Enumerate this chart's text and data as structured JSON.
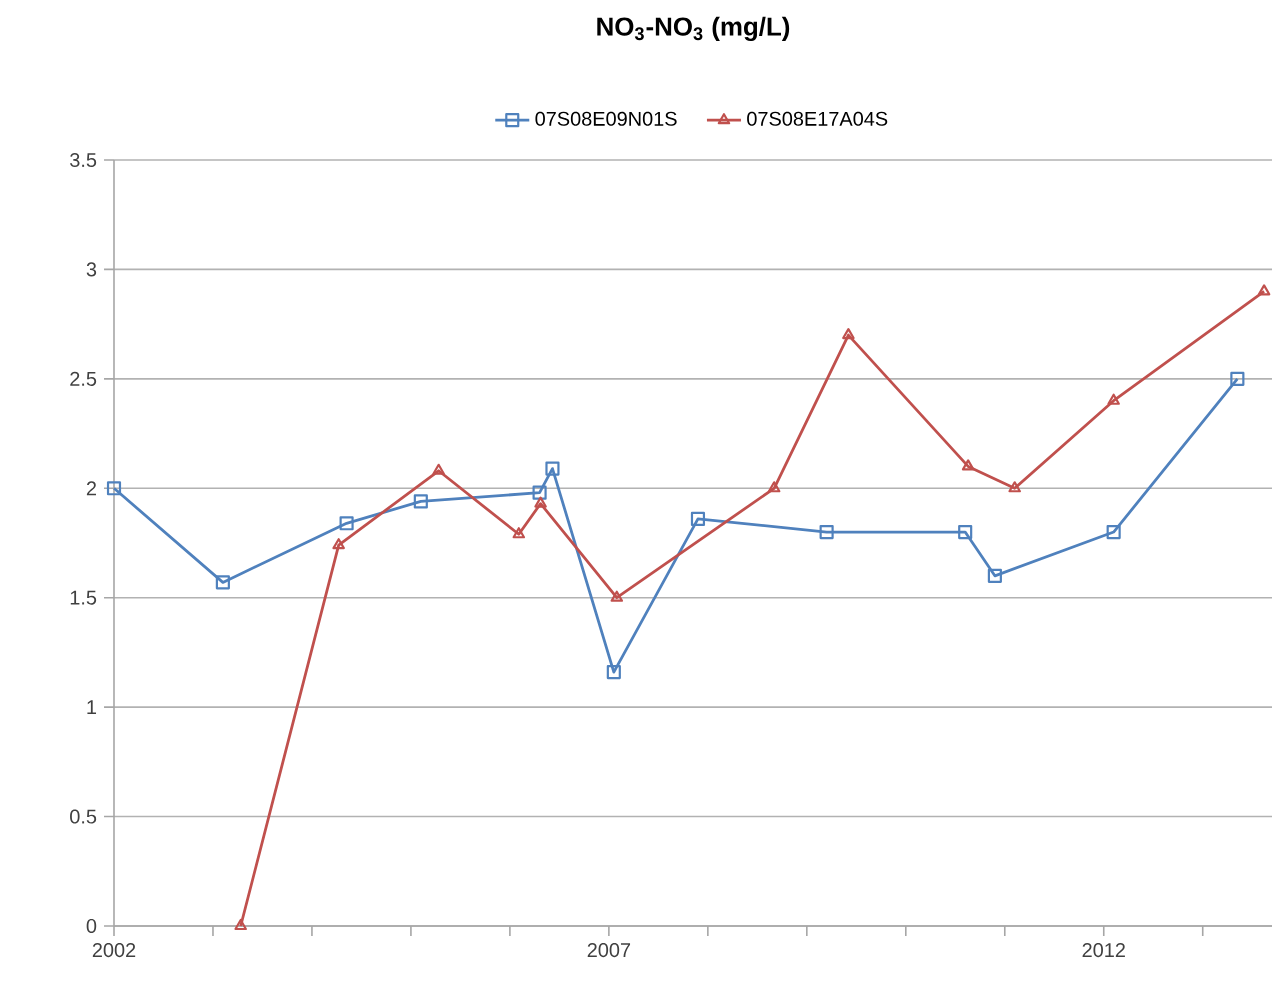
{
  "chart_data": {
    "type": "line",
    "title": "NO$_{3}$-NO$_{3}$ (mg/L)",
    "xlim": [
      2002,
      2013.7
    ],
    "xticks": [
      {
        "value": 2002,
        "label": "2002"
      },
      {
        "value": 2003,
        "label": null
      },
      {
        "value": 2004,
        "label": null
      },
      {
        "value": 2005,
        "label": null
      },
      {
        "value": 2006,
        "label": null
      },
      {
        "value": 2007,
        "label": "2007"
      },
      {
        "value": 2008,
        "label": null
      },
      {
        "value": 2009,
        "label": null
      },
      {
        "value": 2010,
        "label": null
      },
      {
        "value": 2011,
        "label": null
      },
      {
        "value": 2012,
        "label": "2012"
      },
      {
        "value": 2013,
        "label": null
      }
    ],
    "ylim": [
      0,
      3.5
    ],
    "yticks": [
      0,
      0.5,
      1,
      1.5,
      2,
      2.5,
      3,
      3.5
    ],
    "grid": "y",
    "legend": "top",
    "line_style": "solid",
    "series": [
      {
        "name": "07S08E09N01S",
        "color": "#4f81bd",
        "marker": "square",
        "x": [
          2002.0,
          2003.1,
          2004.35,
          2005.1,
          2006.3,
          2006.43,
          2007.05,
          2007.9,
          2009.2,
          2010.6,
          2010.9,
          2012.1,
          2013.35
        ],
        "values": [
          2.0,
          1.57,
          1.84,
          1.94,
          1.98,
          2.09,
          1.16,
          1.86,
          1.8,
          1.8,
          1.6,
          1.8,
          2.5
        ]
      },
      {
        "name": "07S08E17A04S",
        "color": "#c0504d",
        "marker": "triangle",
        "x": [
          2003.28,
          2004.27,
          2005.28,
          2006.09,
          2006.31,
          2007.08,
          2008.67,
          2009.42,
          2010.63,
          2011.1,
          2012.1,
          2013.62
        ],
        "values": [
          0,
          1.74,
          2.08,
          1.79,
          1.93,
          1.5,
          2.0,
          2.7,
          2.1,
          2.0,
          2.4,
          2.9
        ]
      }
    ]
  }
}
